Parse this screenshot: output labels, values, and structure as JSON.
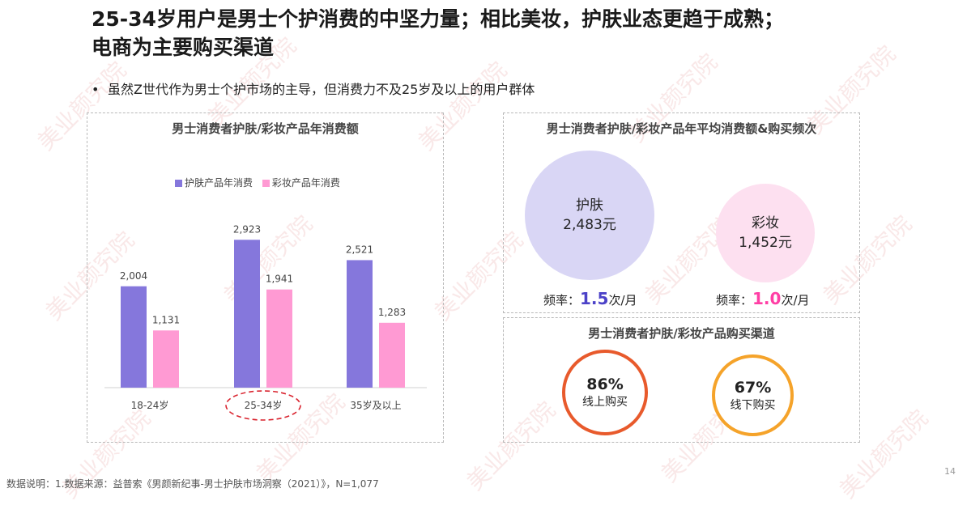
{
  "header": {
    "title_line1": "25-34岁用户是男士个护消费的中坚力量；相比美妆，护肤业态更趋于成熟；",
    "title_line2": "电商为主要购买渠道",
    "bullet": "虽然Z世代作为男士个护市场的主导，但消费力不及25岁及以上的用户群体"
  },
  "watermark": "美业颜究院",
  "colors": {
    "skincare": "#8577dc",
    "makeup": "#ff9ad3",
    "skin_bubble": "#d9d6f5",
    "makeup_bubble": "#fde0f0",
    "online_ring": "#e85a2c",
    "offline_ring": "#f5a32a",
    "highlight_ellipse": "#d9232e",
    "freq_skin": "#4c42c8",
    "freq_makeup": "#ff3ea5"
  },
  "chart_data": [
    {
      "type": "bar",
      "title": "男士消费者护肤/彩妆产品年消费额",
      "categories": [
        "18-24岁",
        "25-34岁",
        "35岁及以上"
      ],
      "series": [
        {
          "name": "护肤产品年消费",
          "values": [
            2004,
            2923,
            2521
          ]
        },
        {
          "name": "彩妆产品年消费",
          "values": [
            1131,
            1941,
            1283
          ]
        }
      ],
      "value_labels": [
        [
          "2,004",
          "2,923",
          "2,521"
        ],
        [
          "1,131",
          "1,941",
          "1,283"
        ]
      ],
      "ylim": [
        0,
        3200
      ],
      "highlight_category": "25-34岁",
      "legend": "top-left"
    },
    {
      "type": "bubble",
      "title": "男士消费者护肤/彩妆产品年平均消费额&购买频次",
      "items": [
        {
          "name": "护肤",
          "amount": 2483,
          "amount_label": "2,483元",
          "freq_prefix": "频率：",
          "freq": "1.5",
          "freq_unit": "次/月"
        },
        {
          "name": "彩妆",
          "amount": 1452,
          "amount_label": "1,452元",
          "freq_prefix": "频率：",
          "freq": "1.0",
          "freq_unit": "次/月"
        }
      ]
    },
    {
      "type": "donut",
      "title": "男士消费者护肤/彩妆产品购买渠道",
      "items": [
        {
          "value": 86,
          "value_label": "86%",
          "label": "线上购买"
        },
        {
          "value": 67,
          "value_label": "67%",
          "label": "线下购买"
        }
      ]
    }
  ],
  "footer": {
    "note": "数据说明：1.数据来源：益普索《男颜新纪事-男士护肤市场洞察（2021）》，N=1,077",
    "page": "14"
  }
}
